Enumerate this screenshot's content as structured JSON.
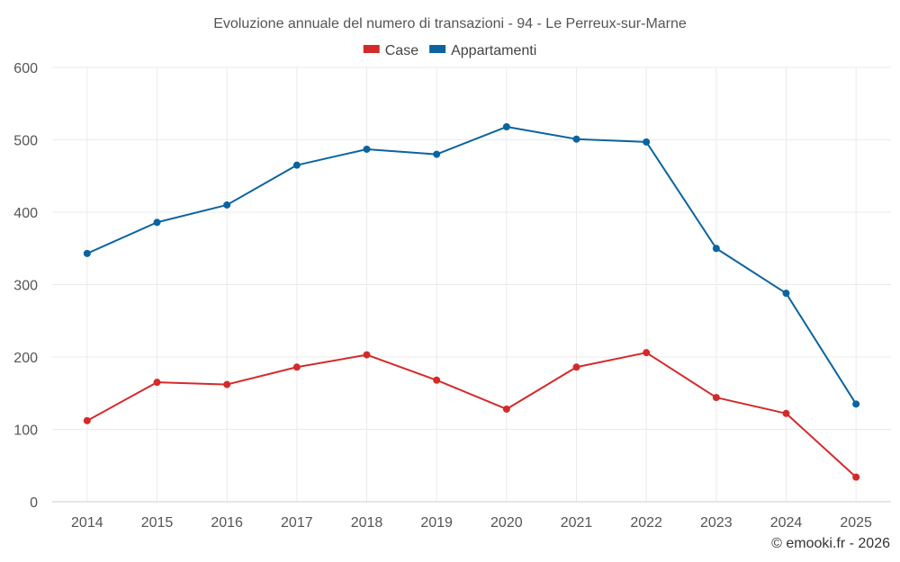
{
  "chart_data": {
    "type": "line",
    "title": "Evoluzione annuale del numero di transazioni - 94 - Le Perreux-sur-Marne",
    "x": [
      "2014",
      "2015",
      "2016",
      "2017",
      "2018",
      "2019",
      "2020",
      "2021",
      "2022",
      "2023",
      "2024",
      "2025"
    ],
    "ylim": [
      0,
      600
    ],
    "yticks": [
      0,
      100,
      200,
      300,
      400,
      500,
      600
    ],
    "grid": true,
    "legend_position": "top-center",
    "series": [
      {
        "name": "Case",
        "color": "#d42a2a",
        "values": [
          112,
          165,
          162,
          186,
          203,
          168,
          128,
          186,
          206,
          144,
          122,
          34
        ]
      },
      {
        "name": "Appartamenti",
        "color": "#0a64a0",
        "values": [
          343,
          386,
          410,
          465,
          487,
          480,
          518,
          501,
          497,
          350,
          288,
          135
        ]
      }
    ]
  },
  "credit": "© emooki.fr - 2026"
}
